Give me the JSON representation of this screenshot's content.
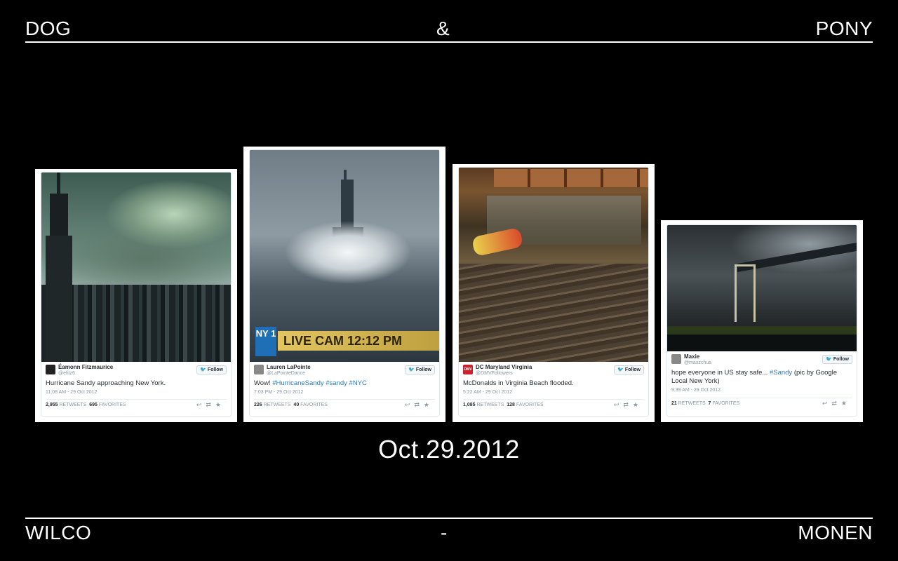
{
  "header": {
    "left": "DOG",
    "center": "&",
    "right": "PONY"
  },
  "footer": {
    "left": "WILCO",
    "center": "-",
    "right": "MONEN"
  },
  "date": "Oct.29.2012",
  "follow_label": "Follow",
  "tweets": [
    {
      "name": "Éamonn Fitzmaurice",
      "handle": "@efitz6",
      "text": "Hurricane Sandy approaching New York.",
      "time": "11:08 AM - 29 Oct 2012",
      "retweets": "2,955",
      "retweets_label": "RETWEETS",
      "favorites": "695",
      "favorites_label": "FAVORITES",
      "photo": "empire-state-building-storm"
    },
    {
      "name": "Lauren LaPointe",
      "handle": "@LaPointeDance",
      "text_plain": "Wow! ",
      "text_tags": "#HurricaneSandy #sandy #NYC",
      "time": "7:03 PM - 29 Oct 2012",
      "retweets": "226",
      "retweets_label": "RETWEETS",
      "favorites": "40",
      "favorites_label": "FAVORITES",
      "overlay_logo": "NY 1",
      "overlay_text": "LIVE CAM 12:12 PM",
      "photo": "statue-of-liberty-waves"
    },
    {
      "name": "DC Maryland Virginia",
      "handle": "@DMVFollowers",
      "text": "McDonalds in Virginia Beach flooded.",
      "time": "5:22 AM - 29 Oct 2012",
      "retweets": "1,085",
      "retweets_label": "RETWEETS",
      "favorites": "128",
      "favorites_label": "FAVORITES",
      "avatar_text": "DMV",
      "photo": "flooded-restaurant"
    },
    {
      "name": "Maxie",
      "handle": "@maxzchua",
      "text_plain": "hope everyone in US stay safe... ",
      "text_tag": "#Sandy",
      "text_rest": " (pic by Google Local New York)",
      "time": "9:39 AM - 29 Oct 2012",
      "retweets": "21",
      "retweets_label": "RETWEETS",
      "favorites": "7",
      "favorites_label": "FAVORITES",
      "photo": "bridge-dark-sky"
    }
  ],
  "icons": {
    "follow": "twitter-bird-icon",
    "actions": [
      "reply-icon",
      "retweet-icon",
      "favorite-icon"
    ]
  }
}
